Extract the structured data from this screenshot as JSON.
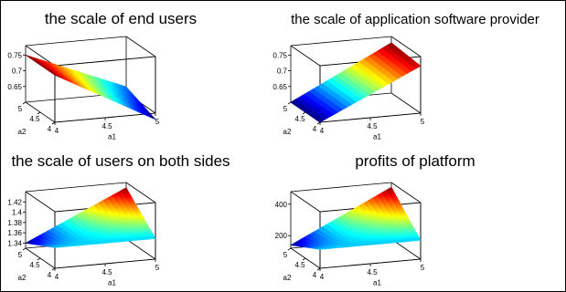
{
  "chart_data": [
    {
      "type": "surface3d",
      "title": "the scale of end users",
      "xlabel": "a1",
      "ylabel": "a2",
      "x_ticks": [
        "4",
        "4.5",
        "5"
      ],
      "y_ticks": [
        "4",
        "4.5",
        "5"
      ],
      "z_ticks": [
        "0.65",
        "0.7",
        "0.75"
      ],
      "xlim": [
        4,
        5
      ],
      "ylim": [
        4,
        5
      ],
      "zlim": [
        0.6,
        0.78
      ],
      "z_corners": {
        "x4y4": 0.75,
        "x5y4": 0.58,
        "x4y5": 0.75,
        "x5y5": 0.62
      },
      "colormap": "jet"
    },
    {
      "type": "surface3d",
      "title": "the scale of application software provider",
      "xlabel": "a1",
      "ylabel": "a2",
      "x_ticks": [
        "4",
        "4.5",
        "5"
      ],
      "y_ticks": [
        "4",
        "4.5",
        "5"
      ],
      "z_ticks": [
        "0.65",
        "0.7",
        "0.75"
      ],
      "xlim": [
        4,
        5
      ],
      "ylim": [
        4,
        5
      ],
      "zlim": [
        0.6,
        0.78
      ],
      "z_corners": {
        "x4y4": 0.6,
        "x5y4": 0.75,
        "x4y5": 0.6,
        "x5y5": 0.76
      },
      "colormap": "jet"
    },
    {
      "type": "surface3d",
      "title": "the scale of users on both sides",
      "xlabel": "a1",
      "ylabel": "a2",
      "x_ticks": [
        "4",
        "4.5",
        "5"
      ],
      "y_ticks": [
        "4",
        "4.5",
        "5"
      ],
      "z_ticks": [
        "1.34",
        "1.36",
        "1.38",
        "1.4",
        "1.42"
      ],
      "xlim": [
        4,
        5
      ],
      "ylim": [
        4,
        5
      ],
      "zlim": [
        1.33,
        1.44
      ],
      "z_corners": {
        "x4y4": 1.37,
        "x5y4": 1.37,
        "x4y5": 1.34,
        "x5y5": 1.43
      },
      "colormap": "jet"
    },
    {
      "type": "surface3d",
      "title": "profits of platform",
      "xlabel": "a1",
      "ylabel": "a2",
      "x_ticks": [
        "4",
        "4.5",
        "5"
      ],
      "y_ticks": [
        "4",
        "4.5",
        "5"
      ],
      "z_ticks": [
        "200",
        "400"
      ],
      "xlim": [
        4,
        5
      ],
      "ylim": [
        4,
        5
      ],
      "zlim": [
        120,
        480
      ],
      "z_corners": {
        "x4y4": 240,
        "x5y4": 240,
        "x4y5": 140,
        "x5y5": 450
      },
      "colormap": "jet"
    }
  ]
}
